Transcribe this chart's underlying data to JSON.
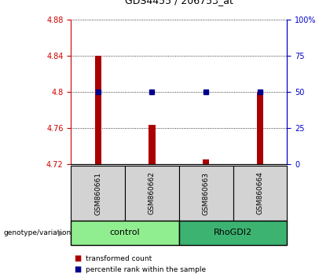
{
  "title": "GDS4455 / 206753_at",
  "samples": [
    "GSM860661",
    "GSM860662",
    "GSM860663",
    "GSM860664"
  ],
  "transformed_counts": [
    4.84,
    4.763,
    4.725,
    4.8
  ],
  "percentile_ranks": [
    50,
    50,
    50,
    50
  ],
  "baseline": 4.72,
  "ylim_left": [
    4.72,
    4.88
  ],
  "ylim_right": [
    0,
    100
  ],
  "yticks_left": [
    4.72,
    4.76,
    4.8,
    4.84,
    4.88
  ],
  "yticks_right": [
    0,
    25,
    50,
    75,
    100
  ],
  "ytick_labels_right": [
    "0",
    "25",
    "50",
    "75",
    "100%"
  ],
  "groups": [
    {
      "label": "control",
      "samples": [
        0,
        1
      ],
      "color": "#90EE90"
    },
    {
      "label": "RhoGDI2",
      "samples": [
        2,
        3
      ],
      "color": "#3CB371"
    }
  ],
  "bar_color": "#AA0000",
  "dot_color": "#00008B",
  "left_axis_color": "#CC0000",
  "right_axis_color": "#0000CC",
  "grid_color": "#000000",
  "sample_box_color": "#D3D3D3",
  "group_label": "genotype/variation"
}
